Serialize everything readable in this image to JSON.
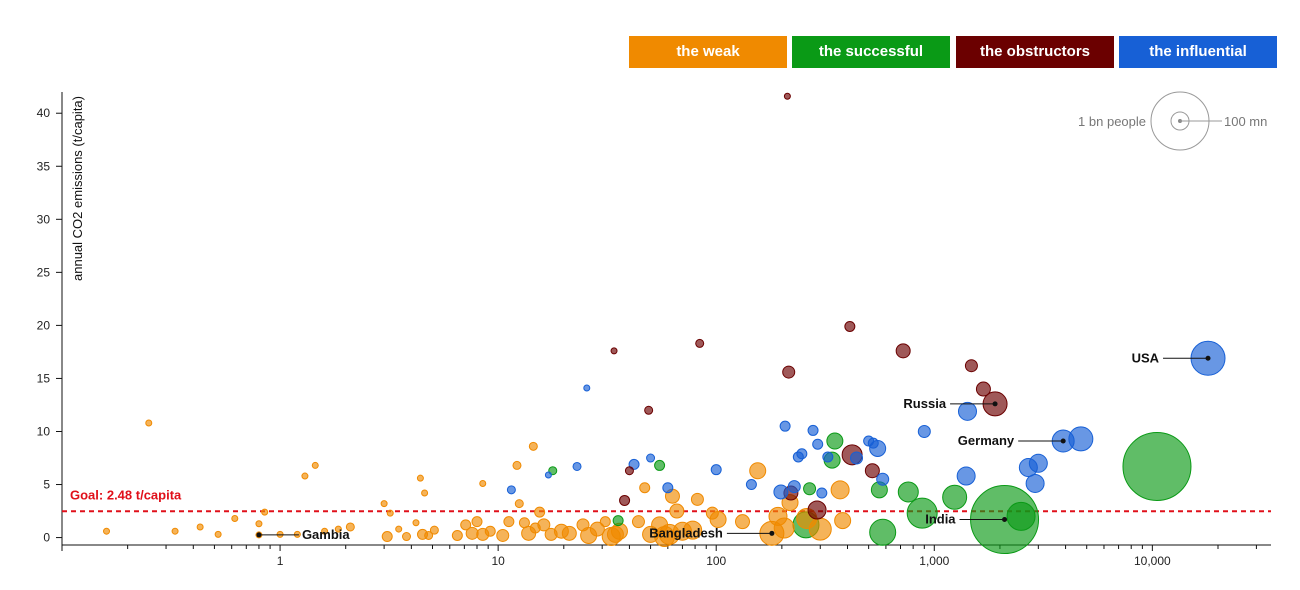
{
  "legend": {
    "groups": [
      {
        "key": "weak",
        "label": "the weak",
        "color": "#f08a00"
      },
      {
        "key": "successful",
        "label": "the successful",
        "color": "#0a9a16"
      },
      {
        "key": "obstructors",
        "label": "the obstructors",
        "color": "#6b0000"
      },
      {
        "key": "influential",
        "label": "the influential",
        "color": "#1760d6"
      }
    ],
    "size_legend": {
      "large_label": "1 bn people",
      "small_label": "100 mn"
    }
  },
  "chart_data": {
    "type": "scatter",
    "xscale": "log",
    "xlim": [
      0.1,
      35000
    ],
    "ylim": [
      -0.7,
      42
    ],
    "ylabel": "annual CO2 emissions (t/capita)",
    "xticks": [
      {
        "value": 1,
        "label": "1"
      },
      {
        "value": 10,
        "label": "10"
      },
      {
        "value": 100,
        "label": "100"
      },
      {
        "value": 1000,
        "label": "1,000"
      },
      {
        "value": 10000,
        "label": "10,000"
      }
    ],
    "yticks": [
      0,
      5,
      10,
      15,
      20,
      25,
      30,
      35,
      40
    ],
    "goal": {
      "value": 2.48,
      "label": "Goal: 2.48 t/capita"
    },
    "annotations": [
      {
        "label": "Gambia",
        "x": 0.8,
        "y": 0.25
      },
      {
        "label": "Bangladesh",
        "x": 180,
        "y": 0.4
      },
      {
        "label": "India",
        "x": 2100,
        "y": 1.7
      },
      {
        "label": "Germany",
        "x": 3900,
        "y": 9.1
      },
      {
        "label": "Russia",
        "x": 1900,
        "y": 12.6
      },
      {
        "label": "USA",
        "x": 18000,
        "y": 16.9
      }
    ],
    "series": [
      {
        "group": "weak",
        "points": [
          [
            0.16,
            0.6,
            3
          ],
          [
            0.25,
            10.8,
            3
          ],
          [
            0.33,
            0.6,
            3
          ],
          [
            0.43,
            1.0,
            3
          ],
          [
            0.52,
            0.3,
            3
          ],
          [
            0.62,
            1.8,
            3
          ],
          [
            0.8,
            1.3,
            3
          ],
          [
            0.8,
            0.25,
            3
          ],
          [
            0.85,
            2.4,
            3
          ],
          [
            1.0,
            0.3,
            3
          ],
          [
            1.2,
            0.3,
            3
          ],
          [
            1.3,
            5.8,
            3
          ],
          [
            1.45,
            6.8,
            3
          ],
          [
            1.6,
            0.6,
            3
          ],
          [
            1.85,
            0.8,
            3
          ],
          [
            2.1,
            1.0,
            4
          ],
          [
            3.0,
            3.2,
            3
          ],
          [
            3.2,
            2.3,
            3
          ],
          [
            3.1,
            0.1,
            5
          ],
          [
            3.5,
            0.8,
            3
          ],
          [
            3.8,
            0.1,
            4
          ],
          [
            4.2,
            1.4,
            3
          ],
          [
            4.4,
            5.6,
            3
          ],
          [
            4.5,
            0.3,
            5
          ],
          [
            4.6,
            4.2,
            3
          ],
          [
            4.8,
            0.2,
            4
          ],
          [
            5.1,
            0.7,
            4
          ],
          [
            6.5,
            0.2,
            5
          ],
          [
            7.1,
            1.2,
            5
          ],
          [
            7.6,
            0.4,
            6
          ],
          [
            8.0,
            1.5,
            5
          ],
          [
            8.5,
            0.3,
            6
          ],
          [
            8.5,
            5.1,
            3
          ],
          [
            9.2,
            0.6,
            5
          ],
          [
            10.5,
            0.2,
            6
          ],
          [
            11.2,
            1.5,
            5
          ],
          [
            12.2,
            6.8,
            4
          ],
          [
            12.5,
            3.2,
            4
          ],
          [
            13.2,
            1.4,
            5
          ],
          [
            13.8,
            0.4,
            7
          ],
          [
            14.5,
            8.6,
            4
          ],
          [
            14.8,
            0.9,
            5
          ],
          [
            15.5,
            2.4,
            5
          ],
          [
            16.2,
            1.2,
            6
          ],
          [
            17.5,
            0.3,
            6
          ],
          [
            19.5,
            0.6,
            7
          ],
          [
            21.2,
            0.4,
            7
          ],
          [
            24.5,
            1.2,
            6
          ],
          [
            26.0,
            0.2,
            8
          ],
          [
            28.5,
            0.8,
            7
          ],
          [
            31.0,
            1.5,
            5
          ],
          [
            33.0,
            0.1,
            9
          ],
          [
            34.5,
            0.3,
            8
          ],
          [
            36.0,
            0.6,
            8
          ],
          [
            44.0,
            1.5,
            6
          ],
          [
            47.0,
            4.7,
            5
          ],
          [
            50.0,
            0.3,
            8
          ],
          [
            55.0,
            1.2,
            8
          ],
          [
            58.0,
            0.1,
            10
          ],
          [
            61.0,
            0.3,
            10
          ],
          [
            63.0,
            3.9,
            7
          ],
          [
            66.0,
            2.5,
            7
          ],
          [
            70.0,
            0.6,
            9
          ],
          [
            78.0,
            0.7,
            9
          ],
          [
            82.0,
            3.6,
            6
          ],
          [
            96.0,
            2.3,
            6
          ],
          [
            102.0,
            1.7,
            8
          ],
          [
            132.0,
            1.5,
            7
          ],
          [
            155.0,
            6.3,
            8
          ],
          [
            180.0,
            0.4,
            12
          ],
          [
            192.0,
            2.0,
            9
          ],
          [
            205.0,
            0.9,
            10
          ],
          [
            218.0,
            3.3,
            8
          ],
          [
            260.0,
            1.8,
            10
          ],
          [
            300.0,
            0.8,
            11
          ],
          [
            370.0,
            4.5,
            9
          ],
          [
            380.0,
            1.6,
            8
          ]
        ]
      },
      {
        "group": "successful",
        "points": [
          [
            17.8,
            6.3,
            4
          ],
          [
            35.5,
            1.6,
            5
          ],
          [
            55.0,
            6.8,
            5
          ],
          [
            258.0,
            1.2,
            13
          ],
          [
            268.0,
            4.6,
            6
          ],
          [
            340.0,
            7.3,
            8
          ],
          [
            350.0,
            9.1,
            8
          ],
          [
            560.0,
            4.5,
            8
          ],
          [
            580.0,
            0.5,
            13
          ],
          [
            760.0,
            4.3,
            10
          ],
          [
            880.0,
            2.3,
            15
          ],
          [
            1240.0,
            3.8,
            12
          ],
          [
            2100.0,
            1.7,
            34
          ],
          [
            2500.0,
            2.0,
            14
          ],
          [
            10500.0,
            6.7,
            34
          ]
        ]
      },
      {
        "group": "obstructors",
        "points": [
          [
            34.0,
            17.6,
            3
          ],
          [
            38.0,
            3.5,
            5
          ],
          [
            40.0,
            6.3,
            4
          ],
          [
            49.0,
            12.0,
            4
          ],
          [
            84.0,
            18.3,
            4
          ],
          [
            212.0,
            41.6,
            3
          ],
          [
            215.0,
            15.6,
            6
          ],
          [
            220.0,
            4.2,
            7
          ],
          [
            290.0,
            2.6,
            9
          ],
          [
            410.0,
            19.9,
            5
          ],
          [
            420.0,
            7.8,
            10
          ],
          [
            520.0,
            6.3,
            7
          ],
          [
            720.0,
            17.6,
            7
          ],
          [
            1480.0,
            16.2,
            6
          ],
          [
            1680.0,
            14.0,
            7
          ],
          [
            1900.0,
            12.6,
            12
          ]
        ]
      },
      {
        "group": "influential",
        "points": [
          [
            11.5,
            4.5,
            4
          ],
          [
            17.0,
            5.9,
            3
          ],
          [
            23.0,
            6.7,
            4
          ],
          [
            25.5,
            14.1,
            3
          ],
          [
            42.0,
            6.9,
            5
          ],
          [
            50.0,
            7.5,
            4
          ],
          [
            60.0,
            4.7,
            5
          ],
          [
            100.0,
            6.4,
            5
          ],
          [
            145.0,
            5.0,
            5
          ],
          [
            198.0,
            4.3,
            7
          ],
          [
            207.0,
            10.5,
            5
          ],
          [
            228.0,
            4.8,
            6
          ],
          [
            238.0,
            7.6,
            5
          ],
          [
            247.0,
            7.9,
            5
          ],
          [
            278.0,
            10.1,
            5
          ],
          [
            292.0,
            8.8,
            5
          ],
          [
            305.0,
            4.2,
            5
          ],
          [
            325.0,
            7.6,
            5
          ],
          [
            440.0,
            7.5,
            6
          ],
          [
            500.0,
            9.1,
            5
          ],
          [
            525.0,
            8.9,
            5
          ],
          [
            550.0,
            8.4,
            8
          ],
          [
            580.0,
            5.5,
            6
          ],
          [
            900.0,
            10.0,
            6
          ],
          [
            1400.0,
            5.8,
            9
          ],
          [
            1420.0,
            11.9,
            9
          ],
          [
            2700.0,
            6.6,
            9
          ],
          [
            2900.0,
            5.1,
            9
          ],
          [
            3000.0,
            7.0,
            9
          ],
          [
            3900.0,
            9.1,
            11
          ],
          [
            4700.0,
            9.3,
            12
          ],
          [
            18000.0,
            16.9,
            17
          ]
        ]
      }
    ]
  }
}
